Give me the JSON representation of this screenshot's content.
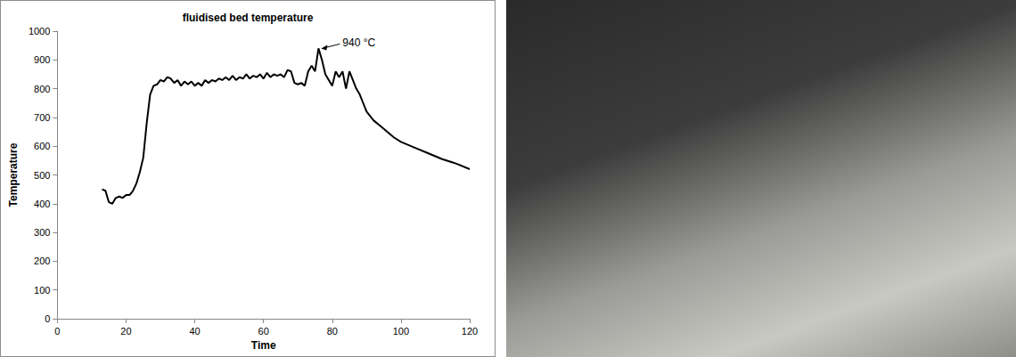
{
  "chart_data": {
    "type": "line",
    "title": "fluidised bed temperature",
    "x_label": "Time",
    "y_label": "Temperature",
    "x": [
      13,
      14,
      15,
      16,
      17,
      18,
      19,
      20,
      21,
      22,
      23,
      24,
      25,
      26,
      27,
      28,
      29,
      30,
      31,
      32,
      33,
      34,
      35,
      36,
      37,
      38,
      39,
      40,
      41,
      42,
      43,
      44,
      45,
      46,
      47,
      48,
      49,
      50,
      51,
      52,
      53,
      54,
      55,
      56,
      57,
      58,
      59,
      60,
      61,
      62,
      63,
      64,
      65,
      66,
      67,
      68,
      69,
      70,
      71,
      72,
      73,
      74,
      75,
      76,
      77,
      78,
      79,
      80,
      81,
      82,
      83,
      84,
      85,
      86,
      87,
      88,
      89,
      90,
      92,
      94,
      96,
      98,
      100,
      104,
      108,
      112,
      116,
      120
    ],
    "values": [
      450,
      445,
      405,
      400,
      420,
      425,
      420,
      430,
      430,
      445,
      470,
      510,
      560,
      680,
      780,
      810,
      815,
      830,
      825,
      840,
      835,
      820,
      830,
      810,
      825,
      815,
      825,
      810,
      820,
      810,
      830,
      820,
      830,
      825,
      835,
      830,
      840,
      830,
      845,
      830,
      840,
      835,
      850,
      835,
      845,
      840,
      850,
      835,
      855,
      840,
      850,
      845,
      850,
      840,
      865,
      860,
      820,
      815,
      820,
      810,
      860,
      880,
      860,
      940,
      900,
      850,
      830,
      810,
      860,
      840,
      860,
      800,
      860,
      830,
      800,
      780,
      750,
      720,
      690,
      670,
      650,
      630,
      615,
      595,
      575,
      555,
      540,
      520
    ],
    "color": "#000000",
    "marker": "none",
    "line_style": "solid",
    "xlim": [
      0,
      120
    ],
    "xticks": [
      0,
      20,
      40,
      60,
      80,
      100,
      120
    ],
    "ylim": [
      0,
      1000
    ],
    "yticks": [
      0,
      100,
      200,
      300,
      400,
      500,
      600,
      700,
      800,
      900,
      1000
    ],
    "grid": false,
    "annotations": [
      {
        "text": "940 °C",
        "x": 76,
        "y": 940
      }
    ]
  }
}
